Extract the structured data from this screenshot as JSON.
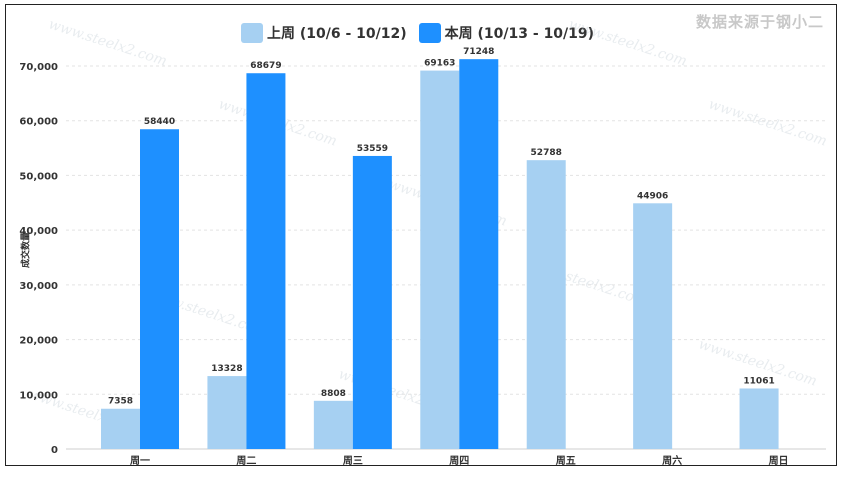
{
  "source_note": "数据来源于钢小二",
  "watermark_text": "www.steelx2.com",
  "colors": {
    "last_week": "#a6d0f2",
    "this_week": "#1e90ff",
    "grid": "#e3e3e3"
  },
  "chart_data": {
    "type": "bar",
    "categories": [
      "周一",
      "周二",
      "周三",
      "周四",
      "周五",
      "周六",
      "周日"
    ],
    "series": [
      {
        "name": "上周 (10/6 - 10/12)",
        "values": [
          7358,
          13328,
          8808,
          69163,
          52788,
          44906,
          11061
        ]
      },
      {
        "name": "本周 (10/13 - 10/19)",
        "values": [
          58440,
          68679,
          53559,
          71248,
          null,
          null,
          null
        ]
      }
    ],
    "ylabel": "成交数量",
    "ylim": [
      0,
      70000
    ],
    "yticks": [
      "0",
      "10,000",
      "20,000",
      "30,000",
      "40,000",
      "50,000",
      "60,000",
      "70,000"
    ],
    "ytick_values": [
      0,
      10000,
      20000,
      30000,
      40000,
      50000,
      60000,
      70000
    ],
    "grid": true,
    "legend_position": "top"
  }
}
